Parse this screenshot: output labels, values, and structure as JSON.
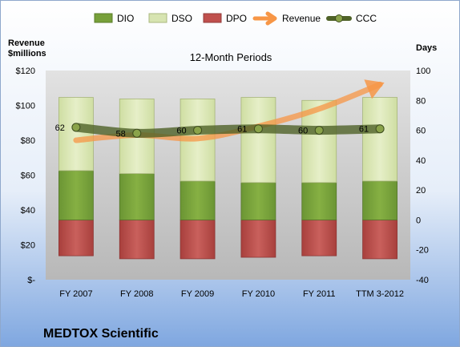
{
  "chart_data": {
    "type": "bar",
    "title": "12-Month Periods",
    "company": "MEDTOX Scientific",
    "left_axis_label_line1": "Revenue",
    "left_axis_label_line2": "$millions",
    "right_axis_label": "Days",
    "categories": [
      "FY 2007",
      "FY 2008",
      "FY 2009",
      "FY 2010",
      "FY 2011",
      "TTM 3-2012"
    ],
    "left_ticks": [
      "$-",
      "$20",
      "$40",
      "$60",
      "$80",
      "$100",
      "$120"
    ],
    "left_ylim": [
      0,
      120
    ],
    "right_ticks": [
      "-40",
      "-20",
      "0",
      "20",
      "40",
      "60",
      "80",
      "100"
    ],
    "right_ylim": [
      -40,
      100
    ],
    "grid": false,
    "legend_position": "top",
    "series": [
      {
        "name": "DIO",
        "kind": "stacked-bar",
        "color": "#77a03a",
        "values": [
          33,
          31,
          26,
          25,
          25,
          26
        ]
      },
      {
        "name": "DSO",
        "kind": "stacked-bar",
        "color": "#d7e4b1",
        "values": [
          49,
          50,
          55,
          57,
          55,
          56
        ]
      },
      {
        "name": "DPO",
        "kind": "negative-bar",
        "color": "#c0504d",
        "values": [
          -24,
          -26,
          -26,
          -25,
          -24,
          -26
        ]
      },
      {
        "name": "Revenue",
        "kind": "arrow-line",
        "color": "#f79646",
        "values": [
          80,
          83,
          81,
          88,
          98,
          112
        ]
      },
      {
        "name": "CCC",
        "kind": "line",
        "color": "#4f6228",
        "values": [
          62,
          58,
          60,
          61,
          60,
          61
        ],
        "labels": [
          "62",
          "58",
          "60",
          "61",
          "60",
          "61"
        ]
      }
    ]
  }
}
